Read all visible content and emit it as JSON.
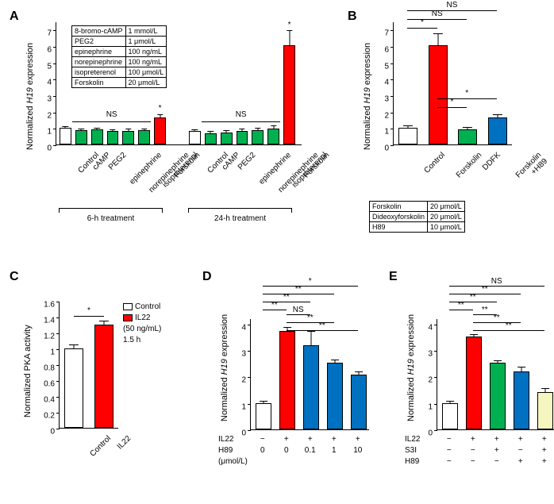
{
  "colors": {
    "white": "#ffffff",
    "green": "#00b050",
    "red": "#ff0000",
    "blue": "#0070c0",
    "paleyellow": "#f5f5c0",
    "black": "#000000"
  },
  "panelA": {
    "label": "A",
    "ylabel": "Normalized H19 expression",
    "ymax": 7.5,
    "yticks": [
      0,
      1,
      2,
      3,
      4,
      5,
      6,
      7
    ],
    "groups": [
      "6-h treatment",
      "24-h treatment"
    ],
    "sig_texts": [
      "NS",
      "*",
      "NS",
      "*"
    ],
    "categories": [
      "Control",
      "cAMP",
      "PEG2",
      "epinephrine",
      "norepinephrine",
      "isopreterenol",
      "Forskolin"
    ],
    "bars6": [
      {
        "v": 1.0,
        "e": 0.05,
        "c": "white"
      },
      {
        "v": 0.85,
        "e": 0.08,
        "c": "green"
      },
      {
        "v": 0.9,
        "e": 0.08,
        "c": "green"
      },
      {
        "v": 0.82,
        "e": 0.07,
        "c": "green"
      },
      {
        "v": 0.82,
        "e": 0.1,
        "c": "green"
      },
      {
        "v": 0.85,
        "e": 0.08,
        "c": "green"
      },
      {
        "v": 1.65,
        "e": 0.12,
        "c": "red"
      }
    ],
    "bars24": [
      {
        "v": 0.8,
        "e": 0.05,
        "c": "white"
      },
      {
        "v": 0.7,
        "e": 0.07,
        "c": "green"
      },
      {
        "v": 0.75,
        "e": 0.07,
        "c": "green"
      },
      {
        "v": 0.8,
        "e": 0.1,
        "c": "green"
      },
      {
        "v": 0.85,
        "e": 0.1,
        "c": "green"
      },
      {
        "v": 0.95,
        "e": 0.18,
        "c": "green"
      },
      {
        "v": 6.05,
        "e": 0.85,
        "c": "red"
      }
    ],
    "table": [
      [
        "8-bromo-cAMP",
        "1 mmol/L"
      ],
      [
        "PEG2",
        "1 μmol/L"
      ],
      [
        "epinephrine",
        "100 ng/mL"
      ],
      [
        "norepinephrine",
        "100 ng/mL"
      ],
      [
        "isopreterenol",
        "100 μmol/L"
      ],
      [
        "Forskolin",
        "20 μmol/L"
      ]
    ]
  },
  "panelB": {
    "label": "B",
    "ylabel": "Normalized H19 expression",
    "ymax": 7.5,
    "yticks": [
      0,
      1,
      2,
      3,
      4,
      5,
      6,
      7
    ],
    "categories": [
      "Control",
      "Forskolin",
      "DDFK",
      "Forskolin\n+H89"
    ],
    "bars": [
      {
        "v": 1.0,
        "e": 0.1,
        "c": "white"
      },
      {
        "v": 6.05,
        "e": 0.7,
        "c": "red"
      },
      {
        "v": 0.9,
        "e": 0.1,
        "c": "green"
      },
      {
        "v": 1.65,
        "e": 0.12,
        "c": "blue"
      }
    ],
    "sigs": [
      {
        "from": 0,
        "to": 1,
        "text": "*",
        "level": 0
      },
      {
        "from": 0,
        "to": 2,
        "text": "NS",
        "level": 1
      },
      {
        "from": 0,
        "to": 3,
        "text": "NS",
        "level": 2
      },
      {
        "from": 1,
        "to": 2,
        "text": "*",
        "level": 0,
        "side": "r"
      },
      {
        "from": 1,
        "to": 3,
        "text": "*",
        "level": 1,
        "side": "r"
      }
    ],
    "table": [
      [
        "Forskolin",
        "20 μmol/L"
      ],
      [
        "Dideoxyforskolin",
        "20 μmol/L"
      ],
      [
        "H89",
        "10 μmol/L"
      ]
    ]
  },
  "panelC": {
    "label": "C",
    "ylabel": "Normalized PKA activity",
    "ymax": 1.6,
    "yticks": [
      0,
      0.2,
      0.4,
      0.6,
      0.8,
      1.0,
      1.2,
      1.4,
      1.6
    ],
    "categories": [
      "Control",
      "IL22"
    ],
    "bars": [
      {
        "v": 1.0,
        "e": 0.04,
        "c": "white"
      },
      {
        "v": 1.3,
        "e": 0.04,
        "c": "red"
      }
    ],
    "sig": "*",
    "legend": [
      {
        "c": "white",
        "t": "Control"
      },
      {
        "c": "red",
        "t": "IL22"
      }
    ],
    "legend_sub": [
      "(50 ng/mL)",
      "1.5 h"
    ]
  },
  "panelD": {
    "label": "D",
    "ylabel": "Normalized H19 expression",
    "ymax": 4.2,
    "yticks": [
      0,
      1,
      2,
      3,
      4
    ],
    "bars": [
      {
        "v": 1.0,
        "e": 0.06,
        "c": "white"
      },
      {
        "v": 3.72,
        "e": 0.12,
        "c": "red"
      },
      {
        "v": 3.18,
        "e": 0.5,
        "c": "blue"
      },
      {
        "v": 2.53,
        "e": 0.07,
        "c": "blue"
      },
      {
        "v": 2.08,
        "e": 0.08,
        "c": "blue"
      }
    ],
    "rows": [
      {
        "name": "IL22",
        "vals": [
          "−",
          "+",
          "+",
          "+",
          "+"
        ]
      },
      {
        "name": "H89",
        "vals": [
          "0",
          "0",
          "0.1",
          "1",
          "10"
        ]
      }
    ],
    "unit": "(μmol/L)",
    "sigs": [
      {
        "from": 0,
        "to": 1,
        "text": "**"
      },
      {
        "from": 0,
        "to": 2,
        "text": "**"
      },
      {
        "from": 0,
        "to": 3,
        "text": "**"
      },
      {
        "from": 0,
        "to": 4,
        "text": "*"
      },
      {
        "from": 1,
        "to": 2,
        "text": "NS"
      },
      {
        "from": 1,
        "to": 3,
        "text": "**"
      },
      {
        "from": 1,
        "to": 4,
        "text": "**"
      }
    ]
  },
  "panelE": {
    "label": "E",
    "ylabel": "Normalized H19 expression",
    "ymax": 4.2,
    "yticks": [
      0,
      1,
      2,
      3,
      4
    ],
    "bars": [
      {
        "v": 1.0,
        "e": 0.05,
        "c": "white"
      },
      {
        "v": 3.52,
        "e": 0.06,
        "c": "red"
      },
      {
        "v": 2.52,
        "e": 0.06,
        "c": "green"
      },
      {
        "v": 2.2,
        "e": 0.14,
        "c": "blue"
      },
      {
        "v": 1.42,
        "e": 0.1,
        "c": "paleyellow"
      }
    ],
    "rows": [
      {
        "name": "IL22",
        "vals": [
          "−",
          "+",
          "+",
          "+",
          "+"
        ]
      },
      {
        "name": "S3I",
        "vals": [
          "−",
          "−",
          "+",
          "−",
          "+"
        ]
      },
      {
        "name": "H89",
        "vals": [
          "−",
          "−",
          "−",
          "+",
          "+"
        ]
      }
    ],
    "sigs": [
      {
        "from": 0,
        "to": 1,
        "text": "**"
      },
      {
        "from": 0,
        "to": 2,
        "text": "**"
      },
      {
        "from": 0,
        "to": 3,
        "text": "**"
      },
      {
        "from": 0,
        "to": 4,
        "text": "NS"
      },
      {
        "from": 1,
        "to": 2,
        "text": "**"
      },
      {
        "from": 1,
        "to": 3,
        "text": "**"
      },
      {
        "from": 1,
        "to": 4,
        "text": "**"
      }
    ]
  }
}
